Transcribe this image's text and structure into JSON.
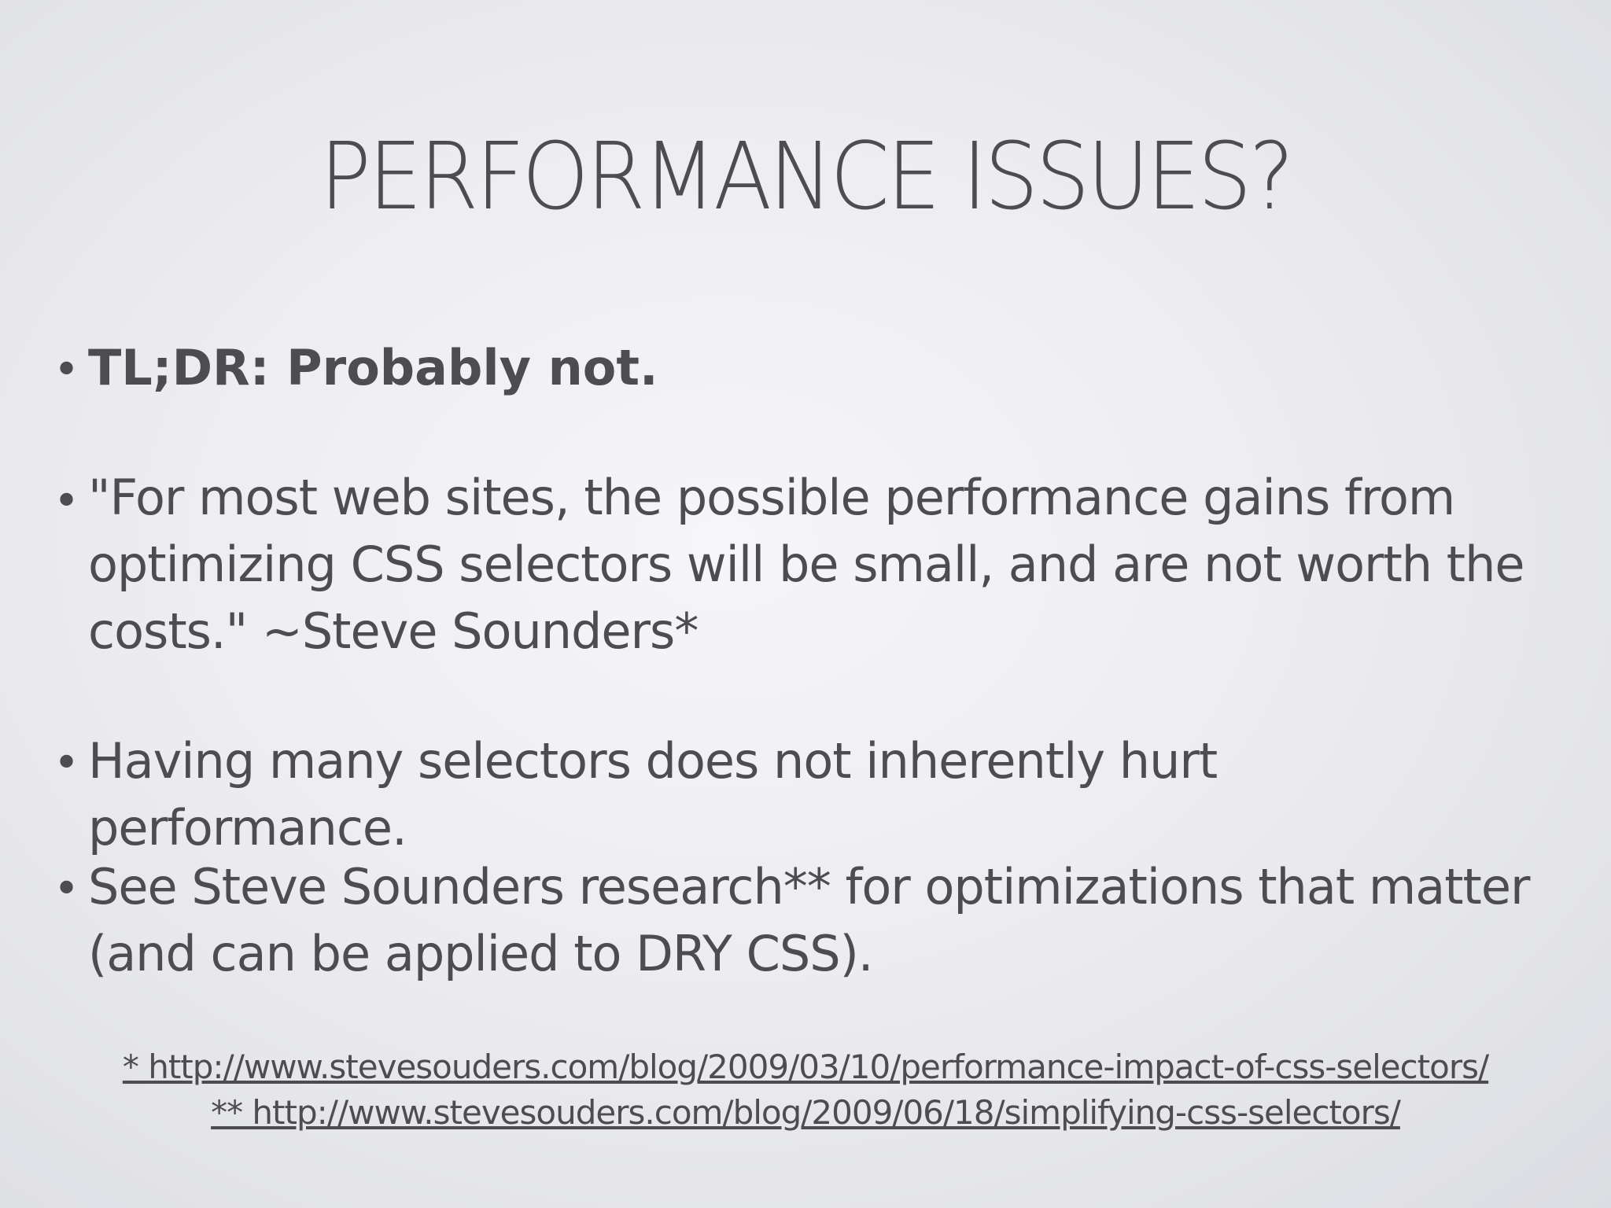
{
  "slide": {
    "title": "PERFORMANCE ISSUES?",
    "bullets": [
      {
        "text": "TL;DR: Probably not.",
        "bold": true
      },
      {
        "text": "\"For most web sites, the possible performance gains from optimizing CSS selectors will be small, and are not worth the costs.\"  ~Steve Sounders*",
        "bold": false
      },
      {
        "text": "Having many selectors does not inherently hurt performance.",
        "bold": false
      },
      {
        "text": "See Steve Sounders research** for optimizations that matter (and can be applied to DRY CSS).",
        "bold": false
      }
    ],
    "bullet_glyph": "•",
    "footnotes": [
      "* http://www.stevesouders.com/blog/2009/03/10/performance-impact-of-css-selectors/",
      "** http://www.stevesouders.com/blog/2009/06/18/simplifying-css-selectors/"
    ]
  }
}
